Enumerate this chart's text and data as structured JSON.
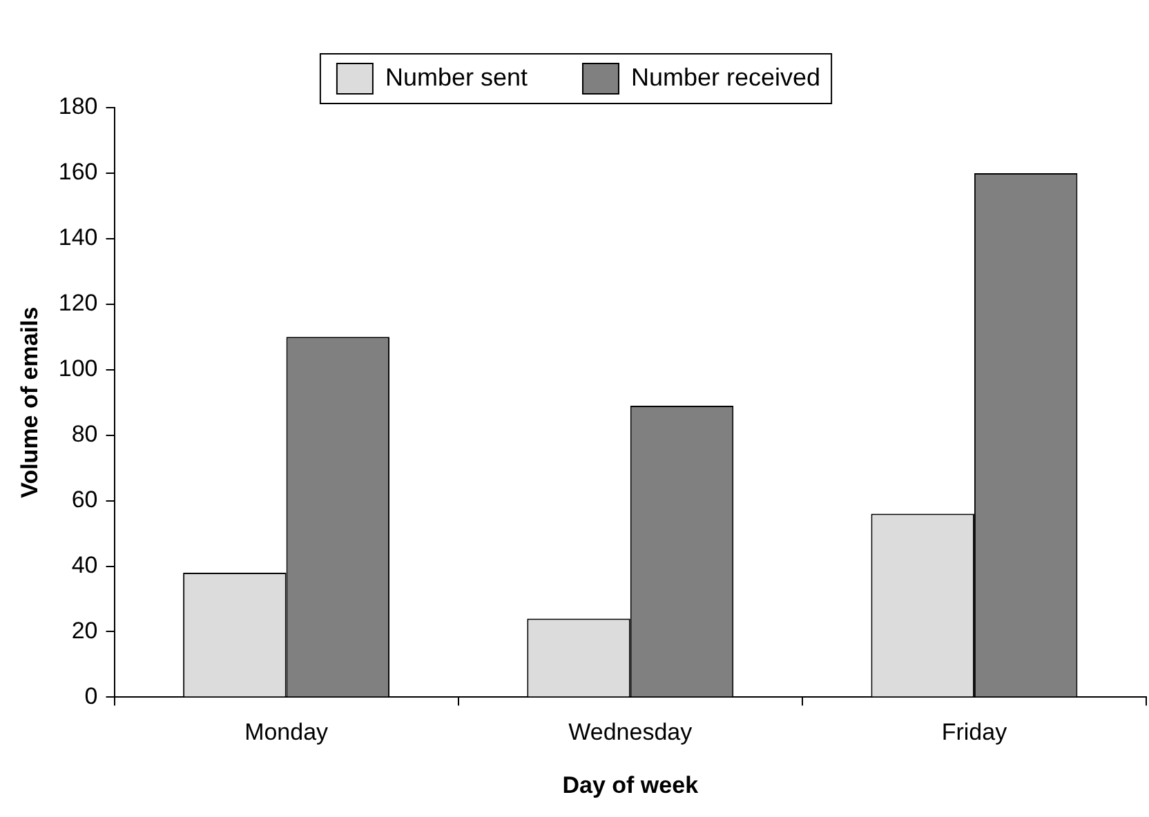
{
  "chart_data": {
    "type": "bar",
    "xlabel": "Day of week",
    "ylabel": "Volume of emails",
    "categories": [
      "Monday",
      "Wednesday",
      "Friday"
    ],
    "series": [
      {
        "name": "Number sent",
        "color": "#dcdcdc",
        "values": [
          38,
          24,
          56
        ]
      },
      {
        "name": "Number received",
        "color": "#808080",
        "values": [
          110,
          89,
          160
        ]
      }
    ],
    "ylim": [
      0,
      180
    ],
    "yticks": [
      0,
      20,
      40,
      60,
      80,
      100,
      120,
      140,
      160,
      180
    ],
    "grid": false,
    "legend": "top"
  }
}
